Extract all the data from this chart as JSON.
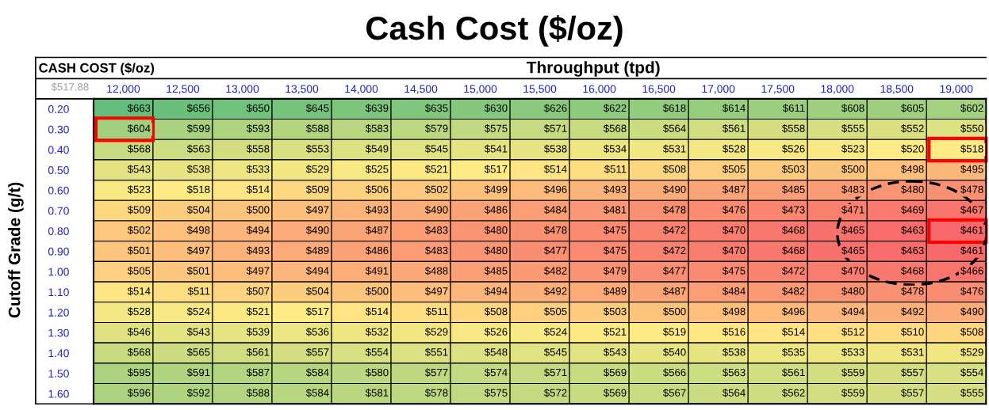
{
  "chart_data": {
    "type": "heatmap",
    "title": "Cash Cost ($/oz)",
    "xlabel": "Throughput (tpd)",
    "ylabel": "Cutoff Grade (g/t)",
    "annotations": [
      "CASH COST ($/oz)",
      "$517.88"
    ],
    "categories": [
      "12,000",
      "12,500",
      "13,000",
      "13,500",
      "14,000",
      "14,500",
      "15,000",
      "15,500",
      "16,000",
      "16,500",
      "17,000",
      "17,500",
      "18,000",
      "18,500",
      "19,000"
    ],
    "y_categories": [
      "0.20",
      "0.30",
      "0.40",
      "0.50",
      "0.60",
      "0.70",
      "0.80",
      "0.90",
      "1.00",
      "1.10",
      "1.20",
      "1.30",
      "1.40",
      "1.50",
      "1.60"
    ],
    "cells": [
      [
        663,
        656,
        650,
        645,
        639,
        635,
        630,
        626,
        622,
        618,
        614,
        611,
        608,
        605,
        602
      ],
      [
        604,
        599,
        593,
        588,
        583,
        579,
        575,
        571,
        568,
        564,
        561,
        558,
        555,
        552,
        550
      ],
      [
        568,
        563,
        558,
        553,
        549,
        545,
        541,
        538,
        534,
        531,
        528,
        526,
        523,
        520,
        518
      ],
      [
        543,
        538,
        533,
        529,
        525,
        521,
        517,
        514,
        511,
        508,
        505,
        503,
        500,
        498,
        495
      ],
      [
        523,
        518,
        514,
        509,
        506,
        502,
        499,
        496,
        493,
        490,
        487,
        485,
        483,
        480,
        478
      ],
      [
        509,
        504,
        500,
        497,
        493,
        490,
        486,
        484,
        481,
        478,
        476,
        473,
        471,
        469,
        467
      ],
      [
        502,
        498,
        494,
        490,
        487,
        483,
        480,
        478,
        475,
        472,
        470,
        468,
        465,
        463,
        461
      ],
      [
        501,
        497,
        493,
        489,
        486,
        483,
        480,
        477,
        475,
        472,
        470,
        468,
        465,
        463,
        461
      ],
      [
        505,
        501,
        497,
        494,
        491,
        488,
        485,
        482,
        479,
        477,
        475,
        472,
        470,
        468,
        466
      ],
      [
        514,
        511,
        507,
        504,
        500,
        497,
        494,
        492,
        489,
        487,
        484,
        482,
        480,
        478,
        476
      ],
      [
        528,
        524,
        521,
        517,
        514,
        511,
        508,
        505,
        503,
        500,
        498,
        496,
        494,
        492,
        490
      ],
      [
        546,
        543,
        539,
        536,
        532,
        529,
        526,
        524,
        521,
        519,
        516,
        514,
        512,
        510,
        508
      ],
      [
        568,
        565,
        561,
        557,
        554,
        551,
        548,
        545,
        543,
        540,
        538,
        535,
        533,
        531,
        529
      ],
      [
        595,
        591,
        587,
        584,
        580,
        577,
        574,
        571,
        569,
        566,
        563,
        561,
        559,
        557,
        554
      ],
      [
        596,
        592,
        588,
        584,
        581,
        578,
        575,
        572,
        569,
        567,
        564,
        562,
        559,
        557,
        555
      ]
    ],
    "cell_labels": [
      [
        "$663",
        "$656",
        "$650",
        "$645",
        "$639",
        "$635",
        "$630",
        "$626",
        "$622",
        "$618",
        "$614",
        "$611",
        "$608",
        "$605",
        "$602"
      ],
      [
        "$604",
        "$599",
        "$593",
        "$588",
        "$583",
        "$579",
        "$575",
        "$571",
        "$568",
        "$564",
        "$561",
        "$558",
        "$555",
        "$552",
        "$550"
      ],
      [
        "$568",
        "$563",
        "$558",
        "$553",
        "$549",
        "$545",
        "$541",
        "$538",
        "$534",
        "$531",
        "$528",
        "$526",
        "$523",
        "$520",
        "$518"
      ],
      [
        "$543",
        "$538",
        "$533",
        "$529",
        "$525",
        "$521",
        "$517",
        "$514",
        "$511",
        "$508",
        "$505",
        "$503",
        "$500",
        "$498",
        "$495"
      ],
      [
        "$523",
        "$518",
        "$514",
        "$509",
        "$506",
        "$502",
        "$499",
        "$496",
        "$493",
        "$490",
        "$487",
        "$485",
        "$483",
        "$480",
        "$478"
      ],
      [
        "$509",
        "$504",
        "$500",
        "$497",
        "$493",
        "$490",
        "$486",
        "$484",
        "$481",
        "$478",
        "$476",
        "$473",
        "$471",
        "$469",
        "$467"
      ],
      [
        "$502",
        "$498",
        "$494",
        "$490",
        "$487",
        "$483",
        "$480",
        "$478",
        "$475",
        "$472",
        "$470",
        "$468",
        "$465",
        "$463",
        "$461"
      ],
      [
        "$501",
        "$497",
        "$493",
        "$489",
        "$486",
        "$483",
        "$480",
        "$477",
        "$475",
        "$472",
        "$470",
        "$468",
        "$465",
        "$463",
        "$461"
      ],
      [
        "$505",
        "$501",
        "$497",
        "$494",
        "$491",
        "$488",
        "$485",
        "$482",
        "$479",
        "$477",
        "$475",
        "$472",
        "$470",
        "$468",
        "$466"
      ],
      [
        "$514",
        "$511",
        "$507",
        "$504",
        "$500",
        "$497",
        "$494",
        "$492",
        "$489",
        "$487",
        "$484",
        "$482",
        "$480",
        "$478",
        "$476"
      ],
      [
        "$528",
        "$524",
        "$521",
        "$517",
        "$514",
        "$511",
        "$508",
        "$505",
        "$503",
        "$500",
        "$498",
        "$496",
        "$494",
        "$492",
        "$490"
      ],
      [
        "$546",
        "$543",
        "$539",
        "$536",
        "$532",
        "$529",
        "$526",
        "$524",
        "$521",
        "$519",
        "$516",
        "$514",
        "$512",
        "$510",
        "$508"
      ],
      [
        "$568",
        "$565",
        "$561",
        "$557",
        "$554",
        "$551",
        "$548",
        "$545",
        "$543",
        "$540",
        "$538",
        "$535",
        "$533",
        "$531",
        "$529"
      ],
      [
        "$595",
        "$591",
        "$587",
        "$584",
        "$580",
        "$577",
        "$574",
        "$571",
        "$569",
        "$566",
        "$563",
        "$561",
        "$559",
        "$557",
        "$554"
      ],
      [
        "$596",
        "$592",
        "$588",
        "$584",
        "$581",
        "$578",
        "$575",
        "$572",
        "$569",
        "$567",
        "$564",
        "$562",
        "$559",
        "$557",
        "$555"
      ]
    ]
  }
}
